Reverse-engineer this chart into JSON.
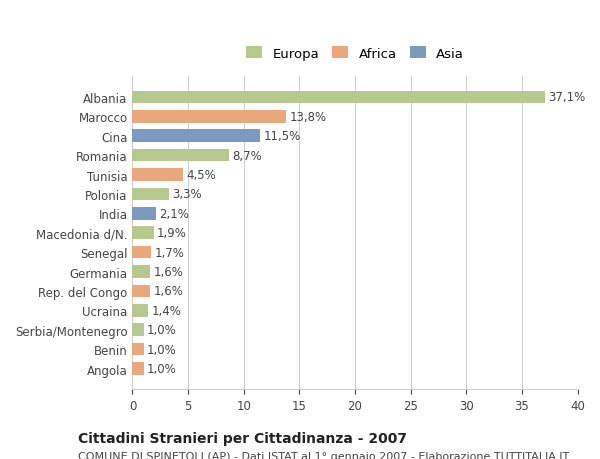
{
  "countries": [
    "Albania",
    "Marocco",
    "Cina",
    "Romania",
    "Tunisia",
    "Polonia",
    "India",
    "Macedonia d/N.",
    "Senegal",
    "Germania",
    "Rep. del Congo",
    "Ucraina",
    "Serbia/Montenegro",
    "Benin",
    "Angola"
  ],
  "values": [
    37.1,
    13.8,
    11.5,
    8.7,
    4.5,
    3.3,
    2.1,
    1.9,
    1.7,
    1.6,
    1.6,
    1.4,
    1.0,
    1.0,
    1.0
  ],
  "labels": [
    "37,1%",
    "13,8%",
    "11,5%",
    "8,7%",
    "4,5%",
    "3,3%",
    "2,1%",
    "1,9%",
    "1,7%",
    "1,6%",
    "1,6%",
    "1,4%",
    "1,0%",
    "1,0%",
    "1,0%"
  ],
  "continents": [
    "Europa",
    "Africa",
    "Asia",
    "Europa",
    "Africa",
    "Europa",
    "Asia",
    "Europa",
    "Africa",
    "Europa",
    "Africa",
    "Europa",
    "Europa",
    "Africa",
    "Africa"
  ],
  "colors": {
    "Europa": "#b5c98e",
    "Africa": "#e8a87c",
    "Asia": "#7a9bbf"
  },
  "legend_order": [
    "Europa",
    "Africa",
    "Asia"
  ],
  "xlim": [
    0,
    40
  ],
  "xticks": [
    0,
    5,
    10,
    15,
    20,
    25,
    30,
    35,
    40
  ],
  "title": "Cittadini Stranieri per Cittadinanza - 2007",
  "subtitle": "COMUNE DI SPINETOLI (AP) - Dati ISTAT al 1° gennaio 2007 - Elaborazione TUTTITALIA.IT",
  "background_color": "#ffffff",
  "bar_height": 0.65,
  "label_fontsize": 8.5,
  "tick_fontsize": 8.5,
  "title_fontsize": 10,
  "subtitle_fontsize": 8
}
